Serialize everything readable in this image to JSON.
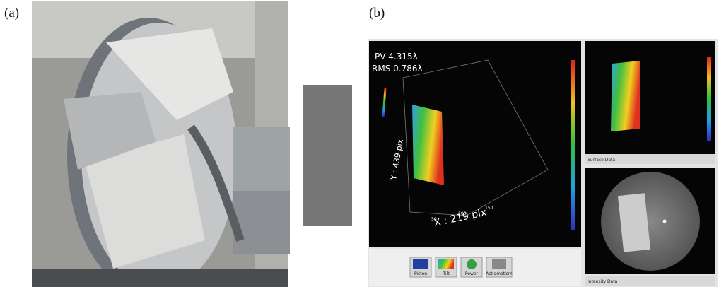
{
  "labels": {
    "a": "(a)",
    "b": "(b)"
  },
  "screenshot": {
    "pv": "PV 4.315λ",
    "rms": "RMS 0.786λ",
    "x_axis": "X : 219 pix",
    "y_axis": "Y : 439 pix",
    "x_ticks": [
      "50",
      "100",
      "150"
    ],
    "surface_panel": "Surface Data",
    "intensity_panel": "Intensity Data",
    "buttons": [
      "Piston",
      "Tilt",
      "Power",
      "Astigmatism"
    ]
  }
}
